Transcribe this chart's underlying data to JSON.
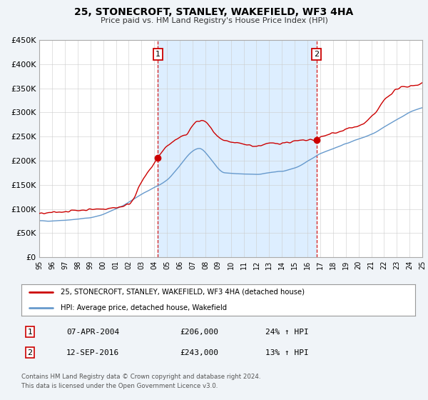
{
  "title": "25, STONECROFT, STANLEY, WAKEFIELD, WF3 4HA",
  "subtitle": "Price paid vs. HM Land Registry's House Price Index (HPI)",
  "legend_line1": "25, STONECROFT, STANLEY, WAKEFIELD, WF3 4HA (detached house)",
  "legend_line2": "HPI: Average price, detached house, Wakefield",
  "sale1_date": "07-APR-2004",
  "sale1_price": "£206,000",
  "sale1_hpi": "24% ↑ HPI",
  "sale1_year": 2004.27,
  "sale1_value": 206000,
  "sale2_date": "12-SEP-2016",
  "sale2_price": "£243,000",
  "sale2_hpi": "13% ↑ HPI",
  "sale2_year": 2016.71,
  "sale2_value": 243000,
  "red_color": "#cc0000",
  "blue_color": "#6699cc",
  "shade_color": "#ddeeff",
  "background_color": "#f0f4f8",
  "plot_bg_color": "#ffffff",
  "y_min": 0,
  "y_max": 450000,
  "x_min": 1995,
  "x_max": 2025,
  "footnote1": "Contains HM Land Registry data © Crown copyright and database right 2024.",
  "footnote2": "This data is licensed under the Open Government Licence v3.0."
}
